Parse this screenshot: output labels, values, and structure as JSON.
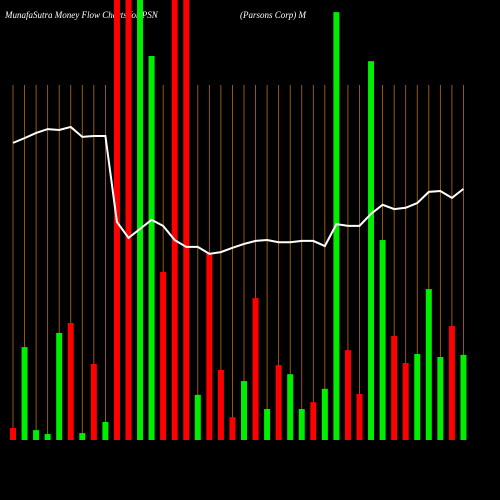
{
  "chart_data": {
    "type": "bar-line",
    "title": "MunafaSutra Money Flow Charts for PSN",
    "subtitle": "(Parsons Corp) M",
    "categories": [
      null,
      null,
      null,
      null,
      null,
      null,
      null,
      null,
      null,
      null,
      null,
      null,
      null,
      null,
      null,
      null,
      null,
      null,
      null,
      null,
      null,
      null,
      null,
      null,
      null,
      null,
      null,
      null,
      null,
      null,
      null,
      null,
      null,
      null,
      null,
      null,
      null,
      null,
      null,
      null
    ],
    "ylim": [
      0,
      100
    ],
    "grid": true,
    "grid_color": "#b8700a",
    "series": [
      {
        "kind": "bar",
        "values": [
          2.8,
          21.6,
          2.3,
          1.4,
          24.9,
          27.2,
          1.6,
          17.7,
          4.2,
          105,
          105,
          105,
          89.3,
          39.1,
          105,
          105,
          10.5,
          43.3,
          16.3,
          5.3,
          13.7,
          33.0,
          7.2,
          17.4,
          15.3,
          7.2,
          8.8,
          11.9,
          99.5,
          20.9,
          10.7,
          88.1,
          46.5,
          24.2,
          17.9,
          20.0,
          35.1,
          19.3,
          26.5,
          19.8
        ],
        "colors": [
          "#ff0000",
          "#00ee00",
          "#00ee00",
          "#00ee00",
          "#00ee00",
          "#ff0000",
          "#00ee00",
          "#ff0000",
          "#00ee00",
          "#ff0000",
          "#ff0000",
          "#00ee00",
          "#00ee00",
          "#ff0000",
          "#ff0000",
          "#ff0000",
          "#00ee00",
          "#ff0000",
          "#ff0000",
          "#ff0000",
          "#00ee00",
          "#ff0000",
          "#00ee00",
          "#ff0000",
          "#00ee00",
          "#00ee00",
          "#ff0000",
          "#00ee00",
          "#00ee00",
          "#ff0000",
          "#ff0000",
          "#00ee00",
          "#00ee00",
          "#ff0000",
          "#ff0000",
          "#00ee00",
          "#00ee00",
          "#00ee00",
          "#ff0000",
          "#00ee00"
        ]
      },
      {
        "kind": "line",
        "color": "#ffffff",
        "values": [
          69.1,
          70.2,
          71.4,
          72.3,
          72.1,
          72.8,
          70.5,
          70.7,
          70.7,
          50.7,
          47.0,
          49.1,
          51.2,
          49.8,
          46.5,
          44.9,
          44.9,
          43.3,
          43.7,
          44.7,
          45.6,
          46.3,
          46.5,
          46.0,
          46.0,
          46.3,
          46.3,
          45.1,
          50.2,
          49.8,
          49.8,
          52.6,
          54.7,
          53.7,
          54.0,
          55.1,
          57.7,
          57.9,
          56.3,
          58.4
        ]
      }
    ]
  }
}
